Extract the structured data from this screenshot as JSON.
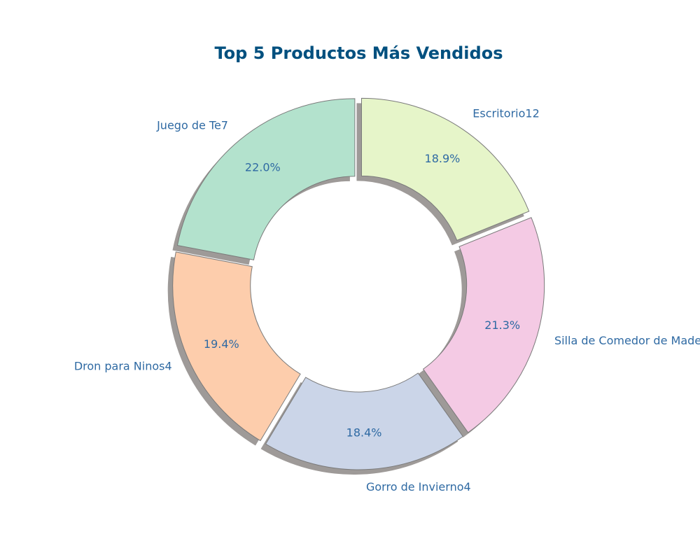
{
  "chart_data": {
    "type": "pie",
    "title": "Top 5 Productos Más Vendidos",
    "donut": true,
    "exploded": true,
    "shadow": true,
    "series": [
      {
        "label": "Juego de Te7",
        "percent": 22.0,
        "percent_label": "22.0%",
        "color": "#b3e2cd"
      },
      {
        "label": "Dron para Ninos4",
        "percent": 19.4,
        "percent_label": "19.4%",
        "color": "#fdcdac"
      },
      {
        "label": "Gorro de Invierno4",
        "percent": 18.4,
        "percent_label": "18.4%",
        "color": "#cbd5e8"
      },
      {
        "label": "Silla de Comedor de Madera",
        "percent": 21.3,
        "percent_label": "21.3%",
        "color": "#f4cae4"
      },
      {
        "label": "Escritorio12",
        "percent": 18.9,
        "percent_label": "18.9%",
        "color": "#e6f5c9"
      }
    ],
    "label_color": "#2f6aa3",
    "title_color": "#00507f",
    "edge_color": "#7a7a7a",
    "shadow_color": "#9e9a98",
    "direction": "counterclockwise",
    "start_angle_deg": 90
  }
}
